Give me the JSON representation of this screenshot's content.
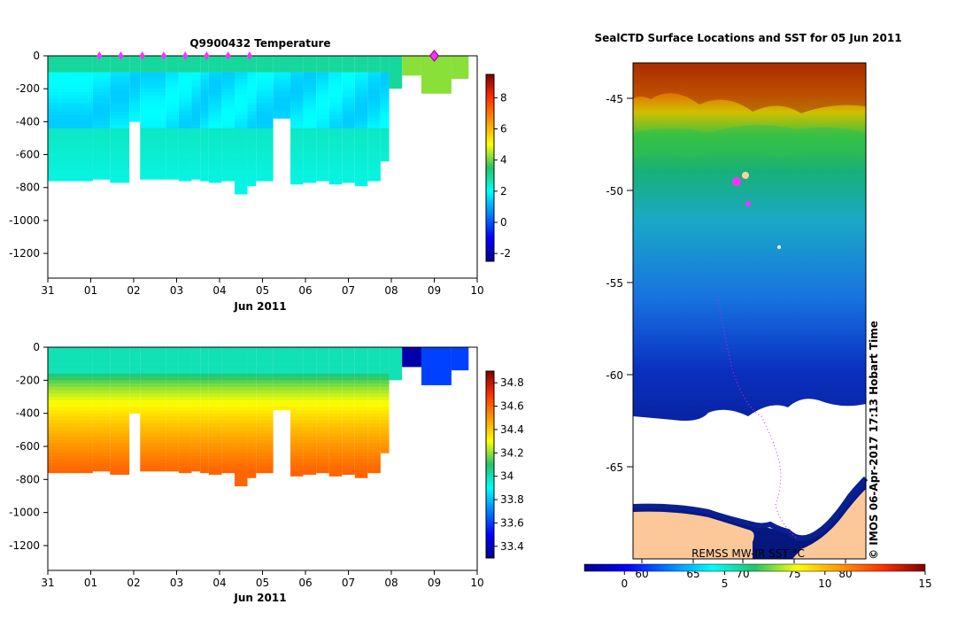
{
  "chart_data": [
    {
      "type": "heatmap",
      "title": "Q9900432  Temperature",
      "xlabel": "Jun 2011",
      "ylabel": "",
      "x_ticks": [
        "31",
        "01",
        "02",
        "03",
        "04",
        "05",
        "06",
        "07",
        "08",
        "09",
        "10"
      ],
      "y_ticks": [
        "0",
        "-200",
        "-400",
        "-600",
        "-800",
        "-1000",
        "-1200"
      ],
      "ylim": [
        -1350,
        0
      ],
      "colorbar_ticks": [
        "8",
        "6",
        "4",
        "2",
        "0",
        "-2"
      ],
      "colorbar_range": [
        -2.5,
        9.5
      ],
      "profile_markers_day": [
        0.25,
        0.75,
        1.25,
        1.75,
        2.25,
        2.75,
        3.25,
        3.75
      ],
      "highlight_marker_day": 8.0,
      "surface_value": 3.0,
      "mid_value": 1.7,
      "deep_value": 2.6,
      "last_profile_surface_values": [
        3.8,
        4.2
      ],
      "last_profile_deep_value": 4.0
    },
    {
      "type": "heatmap",
      "title": "",
      "xlabel": "Jun 2011",
      "ylabel": "",
      "x_ticks": [
        "31",
        "01",
        "02",
        "03",
        "04",
        "05",
        "06",
        "07",
        "08",
        "09",
        "10"
      ],
      "y_ticks": [
        "0",
        "-200",
        "-400",
        "-600",
        "-800",
        "-1000",
        "-1200"
      ],
      "ylim": [
        -1350,
        0
      ],
      "colorbar_ticks": [
        "34.8",
        "34.6",
        "34.4",
        "34.2",
        "34",
        "33.8",
        "33.6",
        "33.4"
      ],
      "colorbar_range": [
        33.3,
        34.9
      ],
      "surface_value": 34.0,
      "deep_value": 34.6,
      "last_profile_surface_values": [
        33.75,
        33.35,
        33.6
      ],
      "last_profile_deep_value": 33.4
    },
    {
      "type": "heatmap",
      "title": "SealCTD Surface Locations and SST for 05 Jun 2011",
      "y_ticks": [
        "-45",
        "-50",
        "-55",
        "-60",
        "-65"
      ],
      "x_ticks": [
        "60",
        "65",
        "70",
        "75",
        "80"
      ],
      "colorbar_ticks": [
        "0",
        "5",
        "10",
        "15"
      ],
      "colorbar_range": [
        -2,
        15
      ],
      "colorbar_label": "REMSS MW-IR SST °C",
      "credit": "© IMOS 06-Apr-2017 17:13 Hobart Time"
    }
  ]
}
